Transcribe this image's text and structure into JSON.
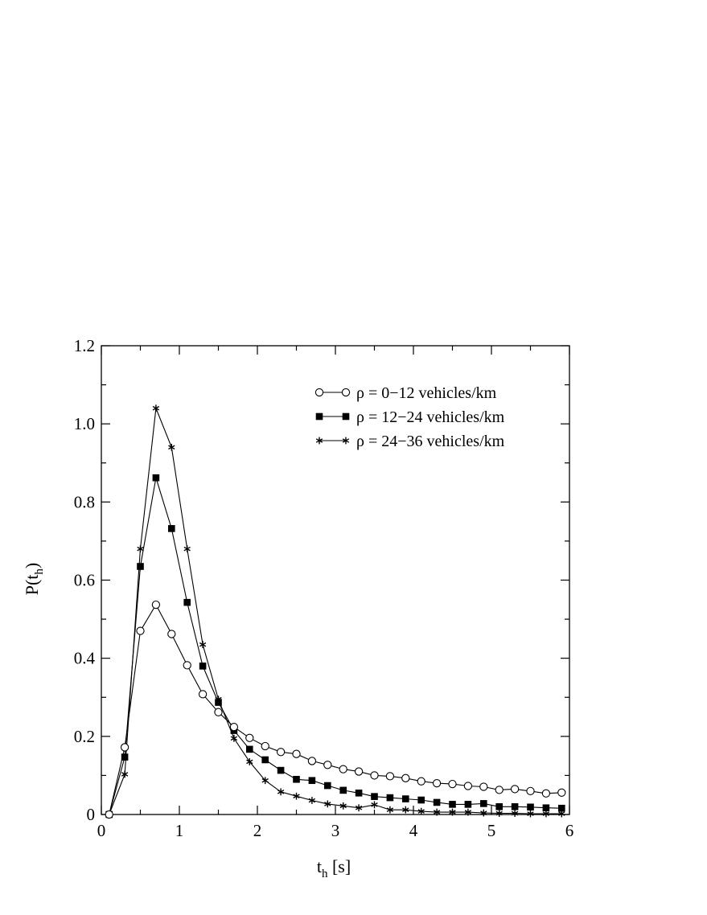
{
  "chart_data": {
    "type": "line",
    "xlabel": {
      "main": "t",
      "sub": "h",
      "unit": " [s]"
    },
    "ylabel": {
      "main": "P(t",
      "sub": "h",
      "close": ")"
    },
    "xlim": [
      0,
      6
    ],
    "ylim": [
      0,
      1.2
    ],
    "xticks": [
      "0",
      "1",
      "2",
      "3",
      "4",
      "5",
      "6"
    ],
    "yticks": [
      "0",
      "0.2",
      "0.4",
      "0.6",
      "0.8",
      "1.0",
      "1.2"
    ],
    "legend_position": "top-right",
    "grid": false,
    "series": [
      {
        "name": "ρ = 0−12 vehicles/km",
        "marker": "open-circle",
        "x": [
          0.1,
          0.3,
          0.5,
          0.7,
          0.9,
          1.1,
          1.3,
          1.5,
          1.7,
          1.9,
          2.1,
          2.3,
          2.5,
          2.7,
          2.9,
          3.1,
          3.3,
          3.5,
          3.7,
          3.9,
          4.1,
          4.3,
          4.5,
          4.7,
          4.9,
          5.1,
          5.3,
          5.5,
          5.7,
          5.9
        ],
        "y": [
          0.0,
          0.172,
          0.47,
          0.537,
          0.462,
          0.382,
          0.308,
          0.262,
          0.224,
          0.196,
          0.175,
          0.16,
          0.155,
          0.137,
          0.127,
          0.116,
          0.11,
          0.1,
          0.098,
          0.093,
          0.085,
          0.08,
          0.078,
          0.073,
          0.071,
          0.063,
          0.065,
          0.06,
          0.054,
          0.056
        ]
      },
      {
        "name": "ρ = 12−24 vehicles/km",
        "marker": "filled-square",
        "x": [
          0.1,
          0.3,
          0.5,
          0.7,
          0.9,
          1.1,
          1.3,
          1.5,
          1.7,
          1.9,
          2.1,
          2.3,
          2.5,
          2.7,
          2.9,
          3.1,
          3.3,
          3.5,
          3.7,
          3.9,
          4.1,
          4.3,
          4.5,
          4.7,
          4.9,
          5.1,
          5.3,
          5.5,
          5.7,
          5.9
        ],
        "y": [
          0.0,
          0.147,
          0.635,
          0.862,
          0.732,
          0.543,
          0.38,
          0.287,
          0.215,
          0.167,
          0.14,
          0.113,
          0.09,
          0.087,
          0.074,
          0.062,
          0.055,
          0.046,
          0.043,
          0.04,
          0.037,
          0.031,
          0.026,
          0.026,
          0.028,
          0.02,
          0.02,
          0.019,
          0.017,
          0.016
        ]
      },
      {
        "name": "ρ = 24−36 vehicles/km",
        "marker": "asterisk",
        "x": [
          0.1,
          0.3,
          0.5,
          0.7,
          0.9,
          1.1,
          1.3,
          1.5,
          1.7,
          1.9,
          2.1,
          2.3,
          2.5,
          2.7,
          2.9,
          3.1,
          3.3,
          3.5,
          3.7,
          3.9,
          4.1,
          4.3,
          4.5,
          4.7,
          4.9,
          5.1,
          5.3,
          5.5,
          5.7,
          5.9
        ],
        "y": [
          0.0,
          0.103,
          0.68,
          1.04,
          0.94,
          0.68,
          0.435,
          0.295,
          0.195,
          0.135,
          0.087,
          0.058,
          0.047,
          0.036,
          0.027,
          0.022,
          0.017,
          0.025,
          0.012,
          0.012,
          0.008,
          0.006,
          0.006,
          0.006,
          0.004,
          0.003,
          0.003,
          0.002,
          0.002,
          0.002
        ]
      }
    ]
  }
}
